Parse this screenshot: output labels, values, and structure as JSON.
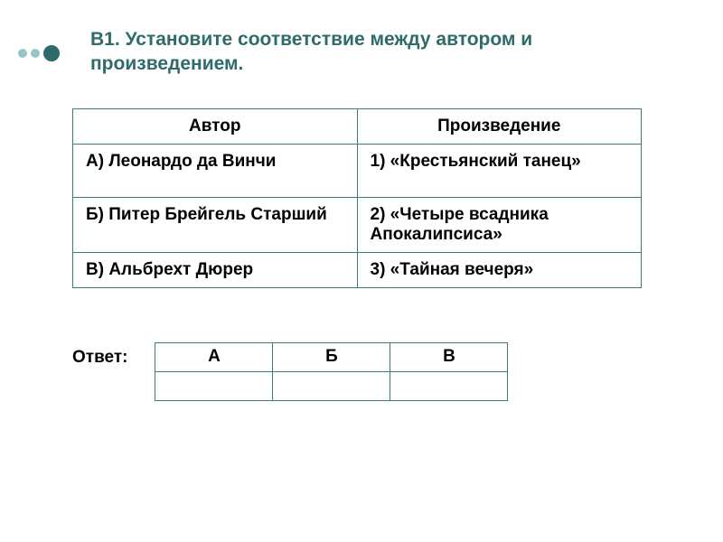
{
  "title": {
    "line1": "В1. Установите соответствие между автором и",
    "line2": "произведением."
  },
  "main_table": {
    "headers": {
      "author": "Автор",
      "work": "Произведение"
    },
    "rows": [
      {
        "author": "А) Леонардо да Винчи",
        "work": "1) «Крестьянский танец»"
      },
      {
        "author": "Б) Питер Брейгель Старший",
        "work": "2) «Четыре всадника Апокалипсиса»"
      },
      {
        "author": "В) Альбрехт Дюрер",
        "work": "3) «Тайная вечеря»"
      }
    ]
  },
  "answer": {
    "label": "Ответ:",
    "columns": [
      "А",
      "Б",
      "В"
    ],
    "values": [
      "",
      "",
      ""
    ]
  },
  "colors": {
    "accent": "#2f6b6b",
    "border": "#3a7a7a",
    "bullet_small": "#9cc3c3",
    "text": "#000000",
    "background": "#ffffff"
  },
  "typography": {
    "title_fontsize_pt": 16,
    "body_fontsize_pt": 14,
    "font_family": "Arial"
  }
}
